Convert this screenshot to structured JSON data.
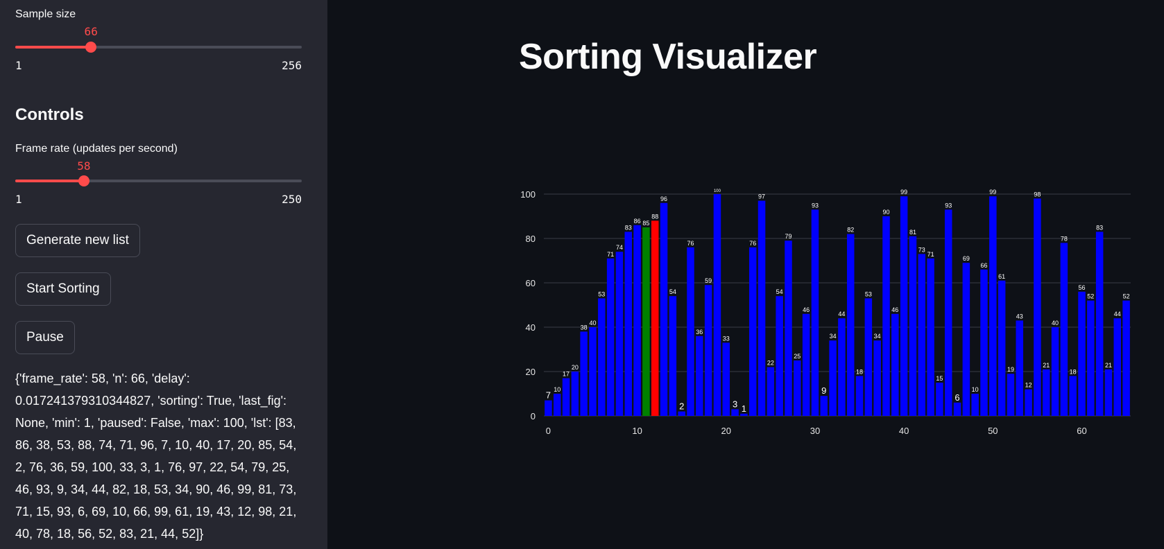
{
  "sidebar": {
    "sample_size": {
      "label": "Sample size",
      "value": 66,
      "value_text": "66",
      "min": 1,
      "max": 256,
      "min_text": "1",
      "max_text": "256"
    },
    "controls_heading": "Controls",
    "frame_rate": {
      "label": "Frame rate (updates per second)",
      "value": 58,
      "value_text": "58",
      "min": 1,
      "max": 250,
      "min_text": "1",
      "max_text": "250"
    },
    "buttons": {
      "generate": "Generate new list",
      "start": "Start Sorting",
      "pause": "Pause"
    },
    "state_text": "{'frame_rate': 58, 'n': 66, 'delay': 0.017241379310344827, 'sorting': True, 'last_fig': None, 'min': 1, 'paused': False, 'max': 100, 'lst': [83, 86, 38, 53, 88, 74, 71, 96, 7, 10, 40, 17, 20, 85, 54, 2, 76, 36, 59, 100, 33, 3, 1, 76, 97, 22, 54, 79, 25, 46, 93, 9, 34, 44, 82, 18, 53, 34, 90, 46, 99, 81, 73, 71, 15, 93, 6, 69, 10, 66, 99, 61, 19, 43, 12, 98, 21, 40, 78, 18, 56, 52, 83, 21, 44, 52]}"
  },
  "main": {
    "title": "Sorting Visualizer"
  },
  "colors": {
    "accent": "#ff4b4b",
    "bar": "#0000ff",
    "compare": "#008000",
    "swap": "#ff0000",
    "background": "#0e1117",
    "sidebar": "#262730"
  },
  "chart_data": {
    "type": "bar",
    "x": [
      0,
      1,
      2,
      3,
      4,
      5,
      6,
      7,
      8,
      9,
      10,
      11,
      12,
      13,
      14,
      15,
      16,
      17,
      18,
      19,
      20,
      21,
      22,
      23,
      24,
      25,
      26,
      27,
      28,
      29,
      30,
      31,
      32,
      33,
      34,
      35,
      36,
      37,
      38,
      39,
      40,
      41,
      42,
      43,
      44,
      45,
      46,
      47,
      48,
      49,
      50,
      51,
      52,
      53,
      54,
      55,
      56,
      57,
      58,
      59,
      60,
      61,
      62,
      63,
      64,
      65
    ],
    "values": [
      7,
      10,
      17,
      20,
      38,
      40,
      53,
      71,
      74,
      83,
      86,
      85,
      88,
      96,
      54,
      2,
      76,
      36,
      59,
      100,
      33,
      3,
      1,
      76,
      97,
      22,
      54,
      79,
      25,
      46,
      93,
      9,
      34,
      44,
      82,
      18,
      53,
      34,
      90,
      46,
      99,
      81,
      73,
      71,
      15,
      93,
      6,
      69,
      10,
      66,
      99,
      61,
      19,
      43,
      12,
      98,
      21,
      40,
      78,
      18,
      56,
      52,
      83,
      21,
      44,
      52
    ],
    "highlight": {
      "11": "green",
      "12": "red"
    },
    "yticks": [
      0,
      20,
      40,
      60,
      80,
      100
    ],
    "xticks": [
      0,
      10,
      20,
      30,
      40,
      50,
      60
    ],
    "ylim": [
      0,
      100
    ],
    "grid": true
  }
}
